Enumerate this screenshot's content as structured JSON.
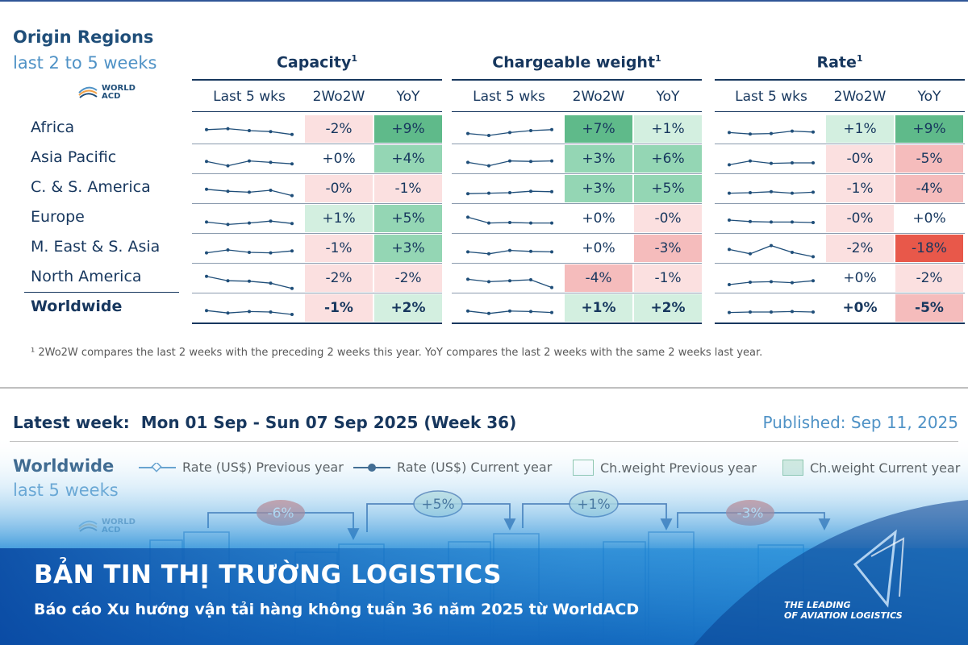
{
  "header": {
    "origin_title": "Origin Regions",
    "origin_subtitle": "last 2 to 5 weeks",
    "logo_line1": "WORLD",
    "logo_line2": "ACD"
  },
  "groups": [
    {
      "name": "Capacity",
      "sup": "1"
    },
    {
      "name": "Chargeable weight",
      "sup": "1"
    },
    {
      "name": "Rate",
      "sup": "1"
    }
  ],
  "column_headers": [
    "Last 5 wks",
    "2Wo2W",
    "YoY"
  ],
  "colors": {
    "navy": "#17375e",
    "pos_strong": "#5fba8a",
    "pos_mid": "#94d6b4",
    "pos_light": "#d3efe0",
    "neg_light": "#fbe0e0",
    "neg_mid": "#f5bcbc",
    "neg_strong": "#e8584a",
    "spark": "#1f4e79"
  },
  "chart_data": {
    "type": "table",
    "rows": [
      {
        "region": "Africa",
        "capacity": {
          "wow": "-2%",
          "yoy": "+9%",
          "spark": [
            5.2,
            5.4,
            5.0,
            4.8,
            4.2
          ]
        },
        "chargeable_weight": {
          "wow": "+7%",
          "yoy": "+1%",
          "spark": [
            4.4,
            4.0,
            4.6,
            5.0,
            5.2
          ]
        },
        "rate": {
          "wow": "+1%",
          "yoy": "+9%",
          "spark": [
            4.6,
            4.3,
            4.4,
            4.9,
            4.7
          ]
        }
      },
      {
        "region": "Asia Pacific",
        "capacity": {
          "wow": "+0%",
          "yoy": "+4%",
          "spark": [
            4.8,
            3.9,
            4.9,
            4.6,
            4.3
          ]
        },
        "chargeable_weight": {
          "wow": "+3%",
          "yoy": "+6%",
          "spark": [
            4.6,
            3.9,
            4.9,
            4.8,
            4.9
          ]
        },
        "rate": {
          "wow": "-0%",
          "yoy": "-5%",
          "spark": [
            4.1,
            4.9,
            4.4,
            4.5,
            4.5
          ]
        }
      },
      {
        "region": "C. & S. America",
        "capacity": {
          "wow": "-0%",
          "yoy": "-1%",
          "spark": [
            5.2,
            4.8,
            4.6,
            5.0,
            3.9
          ]
        },
        "chargeable_weight": {
          "wow": "+3%",
          "yoy": "+5%",
          "spark": [
            4.3,
            4.4,
            4.5,
            4.8,
            4.7
          ]
        },
        "rate": {
          "wow": "-1%",
          "yoy": "-4%",
          "spark": [
            4.4,
            4.5,
            4.7,
            4.4,
            4.6
          ]
        }
      },
      {
        "region": "Europe",
        "capacity": {
          "wow": "+1%",
          "yoy": "+5%",
          "spark": [
            4.6,
            4.1,
            4.4,
            4.8,
            4.3
          ]
        },
        "chargeable_weight": {
          "wow": "+0%",
          "yoy": "-0%",
          "spark": [
            5.6,
            4.4,
            4.5,
            4.4,
            4.4
          ]
        },
        "rate": {
          "wow": "-0%",
          "yoy": "+0%",
          "spark": [
            5.0,
            4.7,
            4.6,
            4.6,
            4.5
          ]
        }
      },
      {
        "region": "M. East & S. Asia",
        "capacity": {
          "wow": "-1%",
          "yoy": "+3%",
          "spark": [
            4.4,
            5.0,
            4.5,
            4.4,
            4.8
          ]
        },
        "chargeable_weight": {
          "wow": "+0%",
          "yoy": "-3%",
          "spark": [
            4.6,
            4.2,
            4.9,
            4.7,
            4.6
          ]
        },
        "rate": {
          "wow": "-2%",
          "yoy": "-18%",
          "spark": [
            5.1,
            4.2,
            5.9,
            4.5,
            3.6
          ]
        }
      },
      {
        "region": "North America",
        "capacity": {
          "wow": "-2%",
          "yoy": "-2%",
          "spark": [
            5.7,
            4.8,
            4.7,
            4.3,
            3.2
          ]
        },
        "chargeable_weight": {
          "wow": "-4%",
          "yoy": "-1%",
          "spark": [
            5.1,
            4.6,
            4.8,
            5.0,
            3.4
          ]
        },
        "rate": {
          "wow": "+0%",
          "yoy": "-2%",
          "spark": [
            4.0,
            4.5,
            4.6,
            4.4,
            4.8
          ]
        }
      },
      {
        "region": "Worldwide",
        "capacity": {
          "wow": "-1%",
          "yoy": "+2%",
          "spark": [
            4.8,
            4.3,
            4.6,
            4.5,
            4.0
          ]
        },
        "chargeable_weight": {
          "wow": "+1%",
          "yoy": "+2%",
          "spark": [
            4.7,
            4.2,
            4.7,
            4.6,
            4.4
          ]
        },
        "rate": {
          "wow": "+0%",
          "yoy": "-5%",
          "spark": [
            4.4,
            4.5,
            4.5,
            4.6,
            4.5
          ]
        }
      }
    ]
  },
  "footnote": "¹ 2Wo2W compares the last 2 weeks with the preceding 2 weeks this year. YoY compares the last 2 weeks with the same 2 weeks last year.",
  "latest": {
    "label": "Latest week:",
    "range": "Mon 01 Sep - Sun 07 Sep 2025 (Week 36)",
    "published": "Published: Sep 11, 2025"
  },
  "worldwide": {
    "title": "Worldwide",
    "subtitle": "last 5 weeks",
    "legend": [
      "Rate (US$) Previous year",
      "Rate (US$) Current year",
      "Ch.weight Previous year",
      "Ch.weight Current year"
    ],
    "changes": [
      "-6%",
      "+5%",
      "+1%",
      "-3%"
    ]
  },
  "banner": {
    "title": "BẢN TIN THỊ TRƯỜNG LOGISTICS",
    "subtitle": "Báo cáo Xu hướng vận tải hàng không tuần 36 năm 2025 từ WorldACD",
    "tagline_1": "THE LEADING",
    "tagline_2": "OF AVIATION LOGISTICS"
  }
}
